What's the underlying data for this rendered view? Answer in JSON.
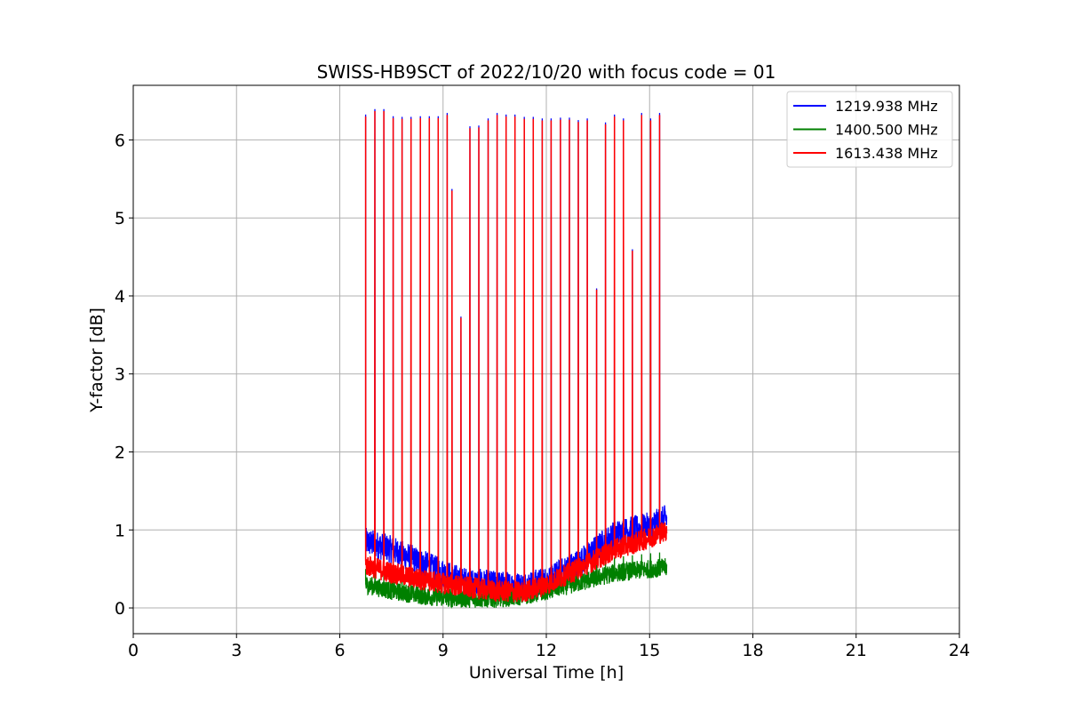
{
  "chart_data": {
    "type": "line",
    "title": "SWISS-HB9SCT of 2022/10/20 with focus code = 01",
    "xlabel": "Universal Time [h]",
    "ylabel": "Y-factor [dB]",
    "xlim": [
      0,
      24
    ],
    "ylim": [
      -0.33,
      6.7
    ],
    "xticks": [
      0,
      3,
      6,
      9,
      12,
      15,
      18,
      21,
      24
    ],
    "yticks": [
      0,
      1,
      2,
      3,
      4,
      5,
      6
    ],
    "grid": true,
    "legend_position": "top-right",
    "colors": {
      "1219.938 MHz": "#0000ff",
      "1400.500 MHz": "#008000",
      "1613.438 MHz": "#ff0000"
    },
    "baseline": {
      "x": [
        6.75,
        7.5,
        8.5,
        9.5,
        10.5,
        11.3,
        12,
        13,
        14,
        15,
        15.5
      ],
      "blue": [
        0.85,
        0.75,
        0.55,
        0.35,
        0.3,
        0.28,
        0.35,
        0.6,
        0.95,
        1.05,
        1.15
      ],
      "green": [
        0.3,
        0.22,
        0.15,
        0.12,
        0.12,
        0.15,
        0.22,
        0.33,
        0.45,
        0.5,
        0.52
      ],
      "red": [
        0.55,
        0.45,
        0.35,
        0.28,
        0.22,
        0.2,
        0.3,
        0.52,
        0.75,
        0.9,
        1.0
      ]
    },
    "spikes": [
      {
        "x": 6.75,
        "peak": 6.3
      },
      {
        "x": 7.02,
        "peak": 6.37
      },
      {
        "x": 7.28,
        "peak": 6.37
      },
      {
        "x": 7.55,
        "peak": 6.28
      },
      {
        "x": 7.81,
        "peak": 6.27
      },
      {
        "x": 8.07,
        "peak": 6.27
      },
      {
        "x": 8.34,
        "peak": 6.28
      },
      {
        "x": 8.6,
        "peak": 6.28
      },
      {
        "x": 8.86,
        "peak": 6.28
      },
      {
        "x": 9.12,
        "peak": 6.32
      },
      {
        "x": 9.26,
        "peak": 5.35
      },
      {
        "x": 9.52,
        "peak": 3.72
      },
      {
        "x": 9.78,
        "peak": 6.15
      },
      {
        "x": 10.04,
        "peak": 6.16
      },
      {
        "x": 10.31,
        "peak": 6.25
      },
      {
        "x": 10.57,
        "peak": 6.32
      },
      {
        "x": 10.83,
        "peak": 6.3
      },
      {
        "x": 11.09,
        "peak": 6.3
      },
      {
        "x": 11.36,
        "peak": 6.27
      },
      {
        "x": 11.62,
        "peak": 6.27
      },
      {
        "x": 11.88,
        "peak": 6.25
      },
      {
        "x": 12.14,
        "peak": 6.25
      },
      {
        "x": 12.41,
        "peak": 6.26
      },
      {
        "x": 12.67,
        "peak": 6.26
      },
      {
        "x": 12.93,
        "peak": 6.23
      },
      {
        "x": 13.19,
        "peak": 6.25
      },
      {
        "x": 13.46,
        "peak": 4.08
      },
      {
        "x": 13.72,
        "peak": 6.2
      },
      {
        "x": 13.98,
        "peak": 6.3
      },
      {
        "x": 14.24,
        "peak": 6.25
      },
      {
        "x": 14.5,
        "peak": 4.58
      },
      {
        "x": 14.77,
        "peak": 6.32
      },
      {
        "x": 15.03,
        "peak": 6.25
      },
      {
        "x": 15.29,
        "peak": 6.32
      }
    ],
    "series": [
      {
        "name": "1219.938 MHz",
        "color": "#0000ff"
      },
      {
        "name": "1400.500 MHz",
        "color": "#008000"
      },
      {
        "name": "1613.438 MHz",
        "color": "#ff0000"
      }
    ]
  }
}
